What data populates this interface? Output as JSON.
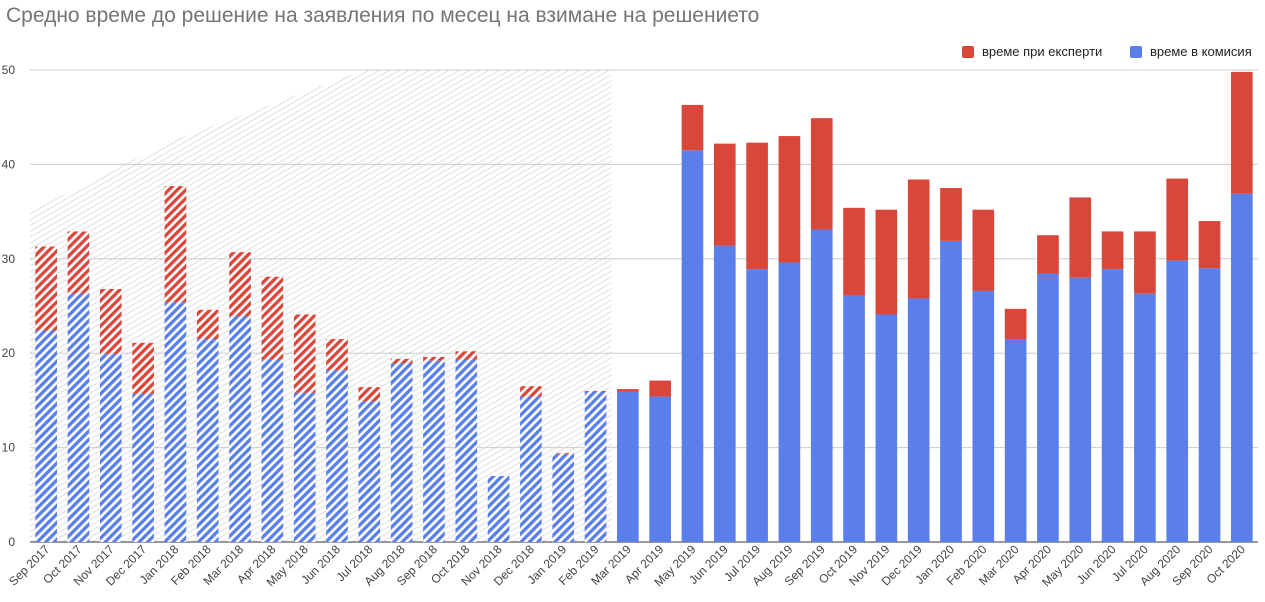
{
  "chart_data": {
    "type": "bar",
    "stacked": true,
    "title": "Средно време до решение на заявления по месец на взимане на решението",
    "xlabel": "",
    "ylabel": "",
    "ylim": [
      0,
      50
    ],
    "yticks": [
      0,
      10,
      20,
      30,
      40,
      50
    ],
    "grid": true,
    "legend_position": "top-right",
    "hatched_region": {
      "from": "Sep 2017",
      "to": "Feb 2019"
    },
    "categories": [
      "Sep 2017",
      "Oct 2017",
      "Nov 2017",
      "Dec 2017",
      "Jan 2018",
      "Feb 2018",
      "Mar 2018",
      "Apr 2018",
      "May 2018",
      "Jun 2018",
      "Jul 2018",
      "Aug 2018",
      "Sep 2018",
      "Oct 2018",
      "Nov 2018",
      "Dec 2018",
      "Jan 2019",
      "Feb 2019",
      "Mar 2019",
      "Apr 2019",
      "May 2019",
      "Jun 2019",
      "Jul 2019",
      "Aug 2019",
      "Sep 2019",
      "Oct 2019",
      "Nov 2019",
      "Dec 2019",
      "Jan 2020",
      "Feb 2020",
      "Mar 2020",
      "Apr 2020",
      "May 2020",
      "Jun 2020",
      "Jul 2020",
      "Aug 2020",
      "Sep 2020",
      "Oct 2020"
    ],
    "series": [
      {
        "name": "време в комисия",
        "color": "#5b7fea",
        "values": [
          22.4,
          26.3,
          19.9,
          15.7,
          25.4,
          21.5,
          23.9,
          19.3,
          15.8,
          18.2,
          14.9,
          18.9,
          19.2,
          19.3,
          7,
          15.4,
          9.3,
          15.9,
          15.9,
          15.4,
          41.5,
          31.4,
          28.9,
          29.6,
          33.1,
          26.1,
          24.1,
          25.8,
          31.9,
          26.6,
          21.5,
          28.4,
          28,
          28.9,
          26.3,
          29.8,
          29,
          36.9
        ]
      },
      {
        "name": "време при експерти",
        "color": "#d9463a",
        "values": [
          8.9,
          6.6,
          6.9,
          5.4,
          12.3,
          3.1,
          6.8,
          8.8,
          8.3,
          3.3,
          1.5,
          0.5,
          0.4,
          0.9,
          0,
          1.1,
          0.1,
          0.1,
          0.3,
          1.7,
          4.8,
          10.8,
          13.4,
          13.4,
          11.8,
          9.3,
          11.1,
          12.6,
          5.6,
          8.6,
          3.2,
          4.1,
          8.5,
          4,
          6.6,
          8.7,
          5,
          12.9
        ]
      }
    ]
  }
}
